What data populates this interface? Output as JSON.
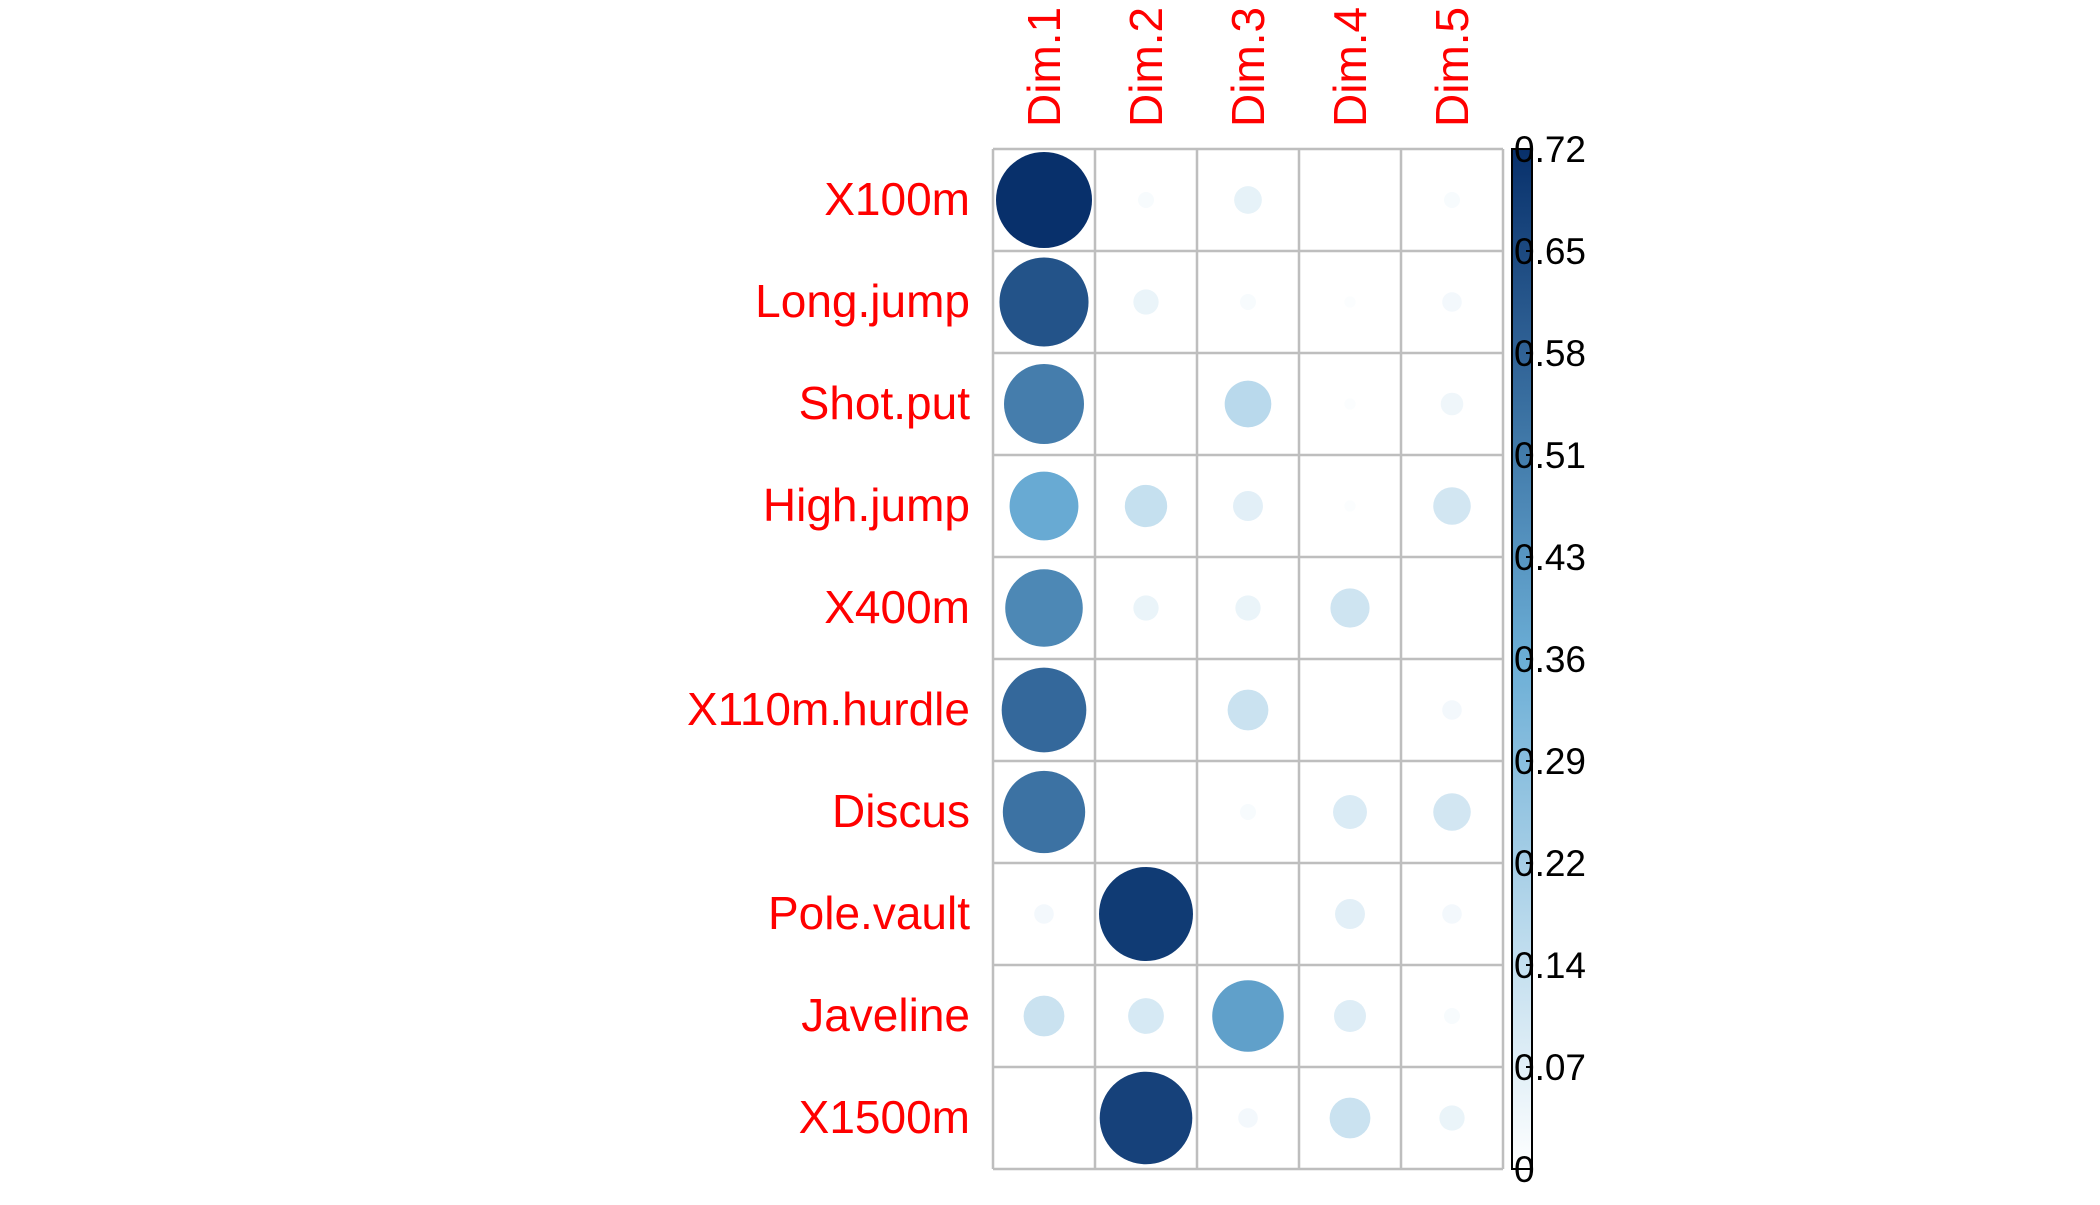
{
  "chart_data": {
    "type": "heatmap",
    "title": "",
    "columns": [
      "Dim.1",
      "Dim.2",
      "Dim.3",
      "Dim.4",
      "Dim.5"
    ],
    "rows": [
      "X100m",
      "Long.jump",
      "Shot.put",
      "High.jump",
      "X400m",
      "X110m.hurdle",
      "Discus",
      "Pole.vault",
      "Javeline",
      "X1500m"
    ],
    "values": [
      [
        0.72,
        0.02,
        0.06,
        0.0,
        0.02
      ],
      [
        0.62,
        0.05,
        0.02,
        0.01,
        0.03
      ],
      [
        0.5,
        0.0,
        0.17,
        0.01,
        0.04
      ],
      [
        0.37,
        0.14,
        0.07,
        0.01,
        0.11
      ],
      [
        0.47,
        0.05,
        0.05,
        0.12,
        0.0
      ],
      [
        0.56,
        0.0,
        0.13,
        0.0,
        0.03
      ],
      [
        0.53,
        0.0,
        0.02,
        0.09,
        0.11
      ],
      [
        0.03,
        0.69,
        0.0,
        0.07,
        0.03
      ],
      [
        0.13,
        0.1,
        0.4,
        0.08,
        0.02
      ],
      [
        0.0,
        0.67,
        0.03,
        0.13,
        0.05
      ]
    ],
    "colorbar": {
      "min": 0,
      "max": 0.72,
      "ticks": [
        "0",
        "0.07",
        "0.14",
        "0.22",
        "0.29",
        "0.36",
        "0.43",
        "0.51",
        "0.58",
        "0.65",
        "0.72"
      ]
    },
    "colors": {
      "label": "#ff0000",
      "grid": "#bebebe",
      "low": "#ffffff",
      "mid": "#6baed6",
      "high": "#08306b"
    }
  }
}
